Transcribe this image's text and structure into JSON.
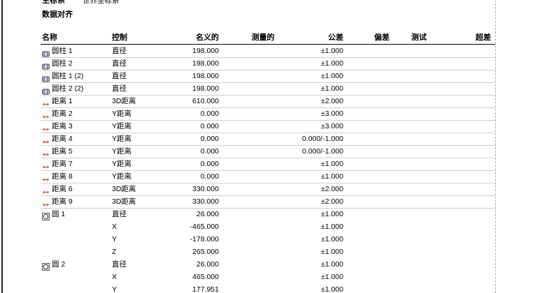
{
  "header": {
    "coordinate_label": "主标系",
    "coordinate_value": "世界坐标系",
    "section_title": "数据对齐"
  },
  "table": {
    "columns": [
      "名称",
      "控制",
      "名义的",
      "测量的",
      "公差",
      "偏差",
      "测试",
      "超差"
    ],
    "rows": [
      {
        "name": "圆柱 1",
        "control": "直径",
        "nominal": "198.000",
        "tolerance": "±1.000"
      },
      {
        "name": "圆柱 2",
        "control": "直径",
        "nominal": "198.000",
        "tolerance": "±1.000"
      },
      {
        "name": "圆柱 1 (2)",
        "control": "直径",
        "nominal": "198.000",
        "tolerance": "±1.000"
      },
      {
        "name": "圆柱 2 (2)",
        "control": "直径",
        "nominal": "198.000",
        "tolerance": "±1.000"
      },
      {
        "name": "距离 1",
        "control": "3D距离",
        "nominal": "610.000",
        "tolerance": "±2.000"
      },
      {
        "name": "距离 2",
        "control": "Y距离",
        "nominal": "0.000",
        "tolerance": "±3.000"
      },
      {
        "name": "距离 3",
        "control": "Y距离",
        "nominal": "0.000",
        "tolerance": "±3.000"
      },
      {
        "name": "距离 4",
        "control": "Y距离",
        "nominal": "0.000",
        "tolerance": "0.000/-1.000"
      },
      {
        "name": "距离 5",
        "control": "Y距离",
        "nominal": "0.000",
        "tolerance": "0.000/-1.000"
      },
      {
        "name": "距离 7",
        "control": "Y距离",
        "nominal": "0.000",
        "tolerance": "±1.000"
      },
      {
        "name": "距离 8",
        "control": "Y距离",
        "nominal": "0.000",
        "tolerance": "±1.000"
      },
      {
        "name": "距离 6",
        "control": "3D距离",
        "nominal": "330.000",
        "tolerance": "±2.000"
      },
      {
        "name": "距离 9",
        "control": "3D距离",
        "nominal": "330.000",
        "tolerance": "±2.000"
      },
      {
        "name": "圆 1",
        "control": "直径",
        "nominal": "26.000",
        "tolerance": "±1.000"
      },
      {
        "control": "X",
        "nominal": "-465.000",
        "tolerance": "±1.000"
      },
      {
        "control": "Y",
        "nominal": "-178.000",
        "tolerance": "±1.000"
      },
      {
        "control": "Z",
        "nominal": "265.000",
        "tolerance": "±1.000"
      },
      {
        "name": "圆 2",
        "control": "直径",
        "nominal": "26.000",
        "tolerance": "±1.000"
      },
      {
        "control": "X",
        "nominal": "465.000",
        "tolerance": "±1.000"
      },
      {
        "control": "Y",
        "nominal": "177.951",
        "tolerance": "±1.000"
      }
    ]
  }
}
